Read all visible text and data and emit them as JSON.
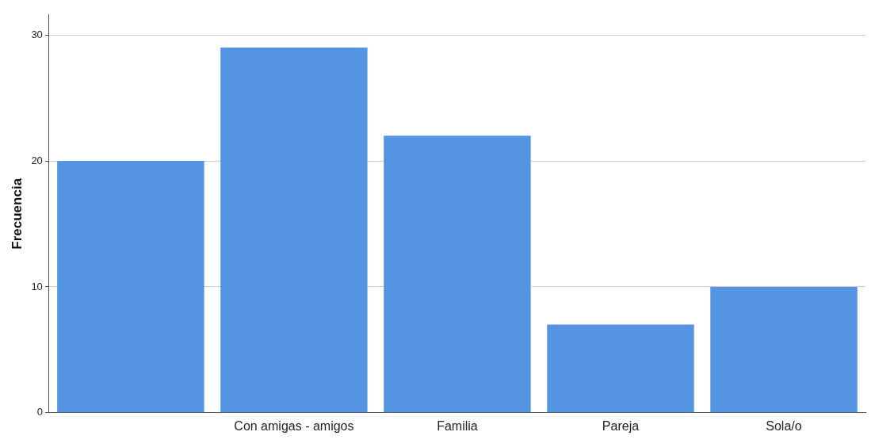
{
  "chart_data": {
    "type": "bar",
    "ylabel": "Frecuencia",
    "categories": [
      null,
      "Con amigas - amigos",
      "Familia",
      "Pareja",
      "Sola/o"
    ],
    "values": [
      20,
      29,
      22,
      7,
      10
    ],
    "color": "#5494e0",
    "ylim": [
      0,
      31.6
    ],
    "yticks": [
      0,
      10,
      20,
      30
    ],
    "grid": "y",
    "legend": false
  }
}
